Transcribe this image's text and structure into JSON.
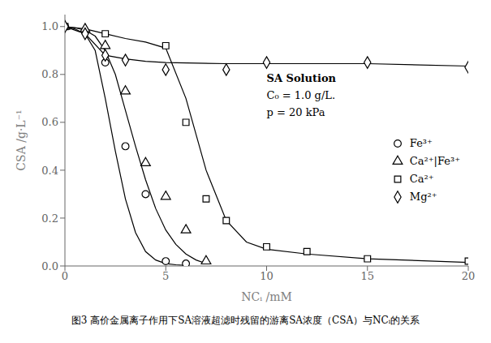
{
  "chart_data": {
    "type": "scatter",
    "xlabel": "NCᵢ /mM",
    "ylabel": "CSA /g·L⁻¹",
    "caption": "图3 高价金属离子作用下SA溶液超滤时残留的游离SA浓度（CSA）与NCᵢ的关系",
    "annotations": [
      "SA Solution",
      "C₀ = 1.0 g/L.",
      "p = 20 kPa"
    ],
    "xlim": [
      0,
      20
    ],
    "ylim": [
      0,
      1.05
    ],
    "xticks": [
      0,
      5,
      10,
      15,
      20
    ],
    "yticks": [
      {
        "value": 0,
        "label": "0.0"
      },
      0.2,
      0.4,
      0.6,
      0.8,
      {
        "value": 1.0,
        "label": "1.0"
      }
    ],
    "grid": false,
    "legend": "right",
    "series": [
      {
        "name": "Fe³⁺",
        "marker": "circle",
        "color": "black",
        "x": [
          0,
          1,
          2,
          3,
          4,
          5,
          6
        ],
        "values": [
          1.0,
          0.98,
          0.85,
          0.5,
          0.3,
          0.02,
          0.01
        ],
        "fit_x": [
          0,
          0.5,
          1,
          1.5,
          2,
          2.5,
          3,
          3.5,
          4,
          4.5,
          5,
          5.5,
          6
        ],
        "fit_values": [
          1.0,
          0.99,
          0.97,
          0.9,
          0.7,
          0.48,
          0.28,
          0.14,
          0.06,
          0.025,
          0.01,
          0.005,
          0.002
        ]
      },
      {
        "name": "Ca²⁺|Fe³⁺",
        "marker": "triangle",
        "color": "black",
        "x": [
          0,
          1,
          2,
          3,
          4,
          5,
          6,
          7
        ],
        "values": [
          1.0,
          0.99,
          0.92,
          0.73,
          0.43,
          0.29,
          0.15,
          0.02
        ],
        "fit_x": [
          0,
          0.5,
          1,
          1.5,
          2,
          2.5,
          3,
          3.5,
          4,
          4.5,
          5,
          5.5,
          6,
          6.5,
          7
        ],
        "fit_values": [
          1.0,
          0.995,
          0.985,
          0.96,
          0.9,
          0.8,
          0.65,
          0.5,
          0.36,
          0.24,
          0.15,
          0.09,
          0.05,
          0.025,
          0.01
        ]
      },
      {
        "name": "Ca²⁺",
        "marker": "square",
        "color": "black",
        "x": [
          0,
          2,
          5,
          6,
          7,
          8,
          10,
          12,
          15,
          20
        ],
        "values": [
          1.0,
          0.97,
          0.92,
          0.6,
          0.28,
          0.19,
          0.08,
          0.06,
          0.03,
          0.02
        ],
        "fit_x": [
          0,
          1,
          2,
          3,
          4,
          5,
          6,
          7,
          8,
          9,
          10,
          12,
          15,
          20
        ],
        "fit_values": [
          1.0,
          0.99,
          0.97,
          0.95,
          0.935,
          0.91,
          0.7,
          0.4,
          0.19,
          0.1,
          0.07,
          0.05,
          0.03,
          0.015
        ]
      },
      {
        "name": "Mg²⁺",
        "marker": "diamond",
        "color": "black",
        "x": [
          0,
          1,
          2,
          3,
          5,
          8,
          10,
          15,
          20
        ],
        "values": [
          1.0,
          0.97,
          0.88,
          0.86,
          0.82,
          0.82,
          0.85,
          0.85,
          0.83
        ],
        "fit_x": [
          0,
          1,
          2,
          3,
          4,
          5,
          8,
          10,
          12,
          15,
          20
        ],
        "fit_values": [
          1.0,
          0.97,
          0.88,
          0.865,
          0.855,
          0.85,
          0.845,
          0.845,
          0.845,
          0.845,
          0.835
        ]
      }
    ]
  }
}
